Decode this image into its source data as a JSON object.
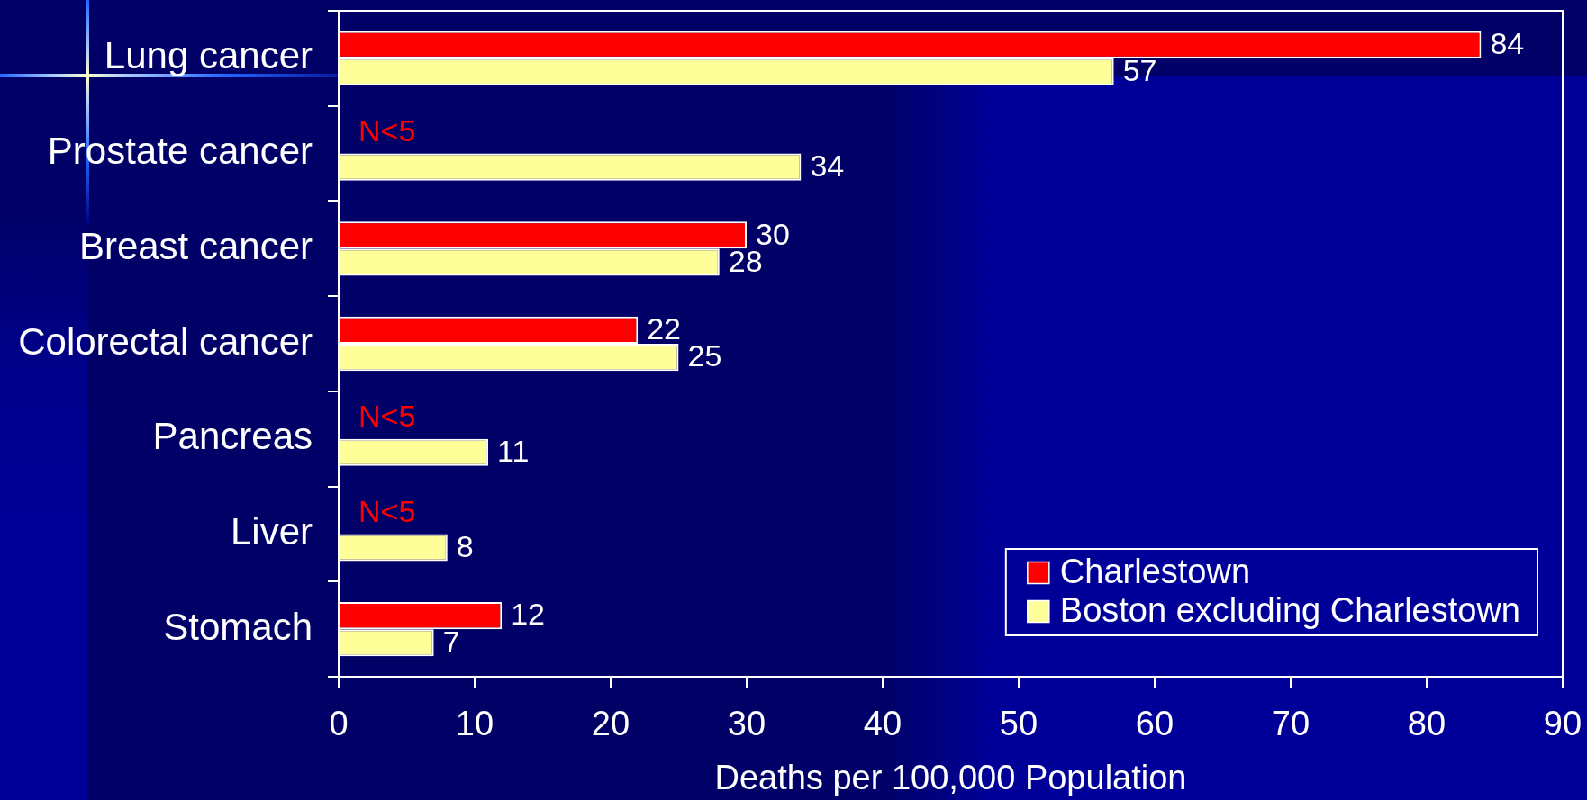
{
  "chart_data": {
    "type": "bar",
    "orientation": "horizontal",
    "categories": [
      "Lung cancer",
      "Prostate cancer",
      "Breast cancer",
      "Colorectal cancer",
      "Pancreas",
      "Liver",
      "Stomach"
    ],
    "series": [
      {
        "name": "Charlestown",
        "color": "#ff0000",
        "values": [
          84,
          null,
          30,
          22,
          null,
          null,
          12
        ],
        "value_labels": [
          "84",
          "N<5",
          "30",
          "22",
          "N<5",
          "N<5",
          "12"
        ]
      },
      {
        "name": "Boston excluding Charlestown",
        "color": "#ffff99",
        "values": [
          57,
          34,
          28,
          25,
          11,
          8,
          7
        ],
        "value_labels": [
          "57",
          "34",
          "28",
          "25",
          "11",
          "8",
          "7"
        ]
      }
    ],
    "xlim": [
      0,
      90
    ],
    "xticks": [
      0,
      10,
      20,
      30,
      40,
      50,
      60,
      70,
      80,
      90
    ],
    "xlabel": "Deaths per 100,000 Population",
    "legend": "bottom right"
  }
}
